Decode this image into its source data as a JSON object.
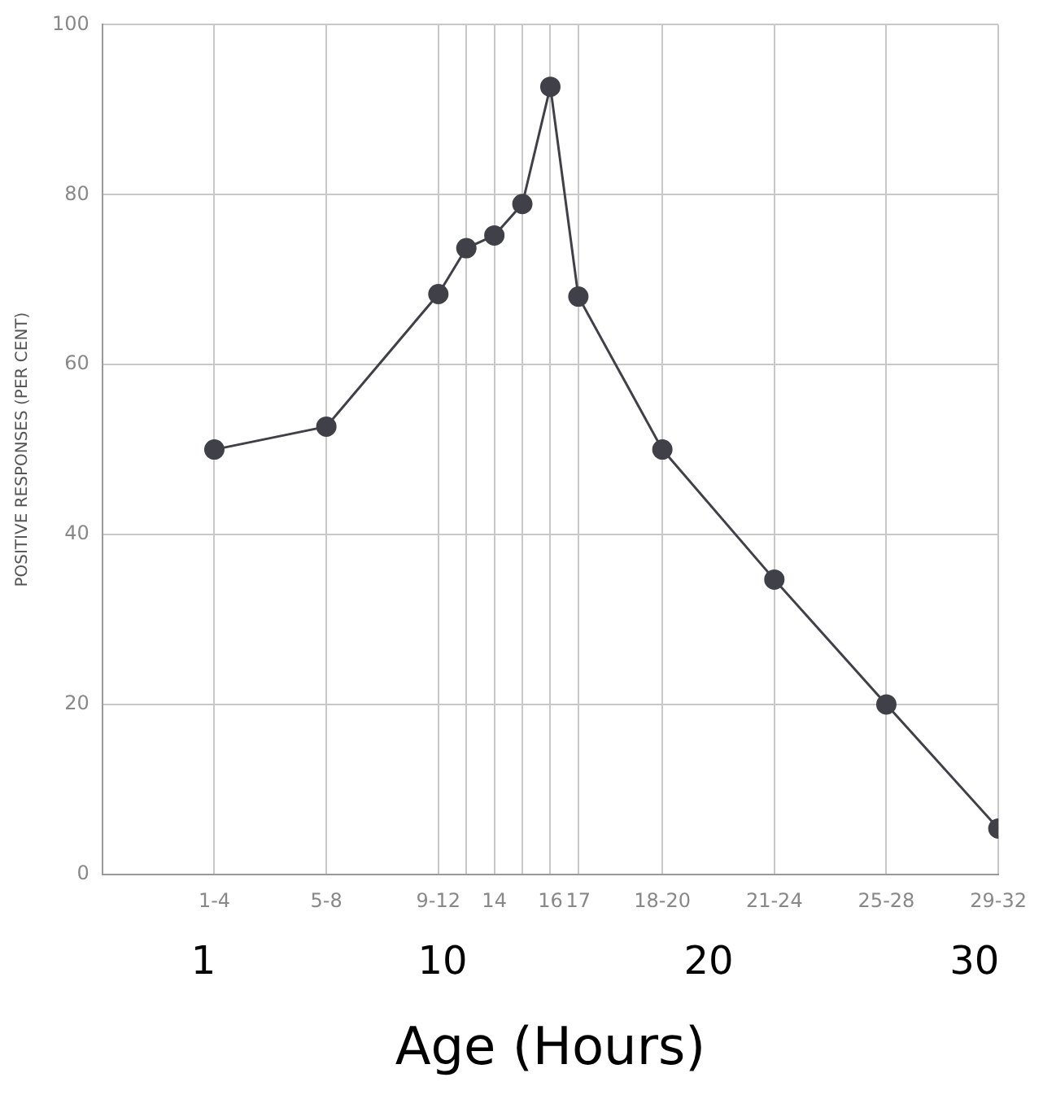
{
  "chart_data": {
    "type": "line",
    "ylabel": "POSITIVE RESPONSES (PER CENT)",
    "xlabel": "Age (Hours)",
    "x": [
      4,
      8,
      12,
      13,
      14,
      15,
      16,
      17,
      20,
      24,
      28,
      32
    ],
    "values": [
      50.0,
      52.7,
      68.3,
      73.7,
      75.2,
      78.9,
      92.7,
      68.0,
      50.0,
      34.7,
      20.0,
      5.4
    ],
    "color": "#404048",
    "marker": "circle",
    "line_style": "solid",
    "xlim": [
      0,
      32
    ],
    "xticks": [
      {
        "value": 4,
        "label": "1-4"
      },
      {
        "value": 8,
        "label": "5-8"
      },
      {
        "value": 12,
        "label": "9-12"
      },
      {
        "value": 13,
        "label": null
      },
      {
        "value": 14,
        "label": "14"
      },
      {
        "value": 15,
        "label": null
      },
      {
        "value": 16,
        "label": "16"
      },
      {
        "value": 17,
        "label": "17"
      },
      {
        "value": 20,
        "label": "18-20"
      },
      {
        "value": 24,
        "label": "21-24"
      },
      {
        "value": 28,
        "label": "25-28"
      },
      {
        "value": 32,
        "label": "29-32"
      }
    ],
    "x2lim": [
      -2.8,
      30.9
    ],
    "x2ticks": [
      1,
      10,
      20,
      30
    ],
    "ylim": [
      0,
      100
    ],
    "yticks": [
      0,
      20,
      40,
      60,
      80,
      100
    ],
    "grid": true,
    "legend": false
  }
}
